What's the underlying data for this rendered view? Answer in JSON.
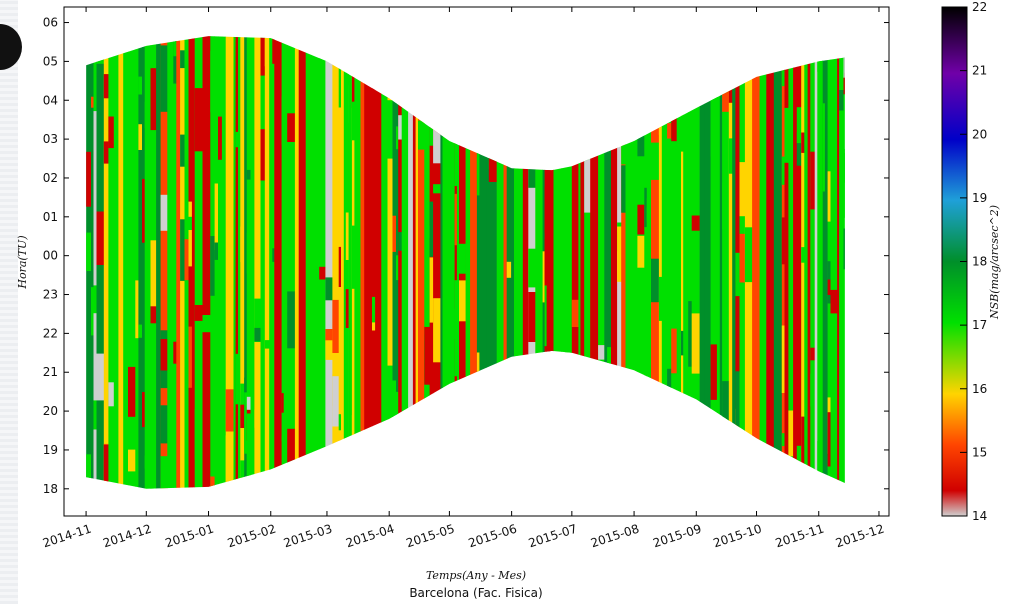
{
  "chart_data": {
    "type": "heatmap",
    "title": "",
    "subtitle": "Barcelona (Fac. Fisica)",
    "xlabel": "Temps(Any - Mes)",
    "ylabel": "Hora(TU)",
    "x_ticks": [
      "2014-11",
      "2014-12",
      "2015-01",
      "2015-02",
      "2015-03",
      "2015-04",
      "2015-05",
      "2015-06",
      "2015-07",
      "2015-08",
      "2015-09",
      "2015-10",
      "2015-11",
      "2015-12"
    ],
    "y_ticks": [
      "06",
      "05",
      "04",
      "03",
      "02",
      "01",
      "00",
      "23",
      "22",
      "21",
      "20",
      "19",
      "18"
    ],
    "x_range": [
      "2014-10-21",
      "2015-12-06"
    ],
    "y_range_hours_UT": [
      17.3,
      30.4
    ],
    "night_envelope": {
      "x": [
        "2014-11-01",
        "2014-12-01",
        "2015-01-01",
        "2015-02-01",
        "2015-03-01",
        "2015-04-01",
        "2015-05-01",
        "2015-06-01",
        "2015-06-21",
        "2015-07-01",
        "2015-08-01",
        "2015-09-01",
        "2015-10-01",
        "2015-11-01",
        "2015-11-14"
      ],
      "start_hour_UT": [
        18.3,
        18.0,
        18.05,
        18.5,
        19.1,
        19.8,
        20.7,
        21.4,
        21.55,
        21.5,
        21.05,
        20.3,
        19.3,
        18.45,
        18.15
      ],
      "end_hour_UT": [
        28.9,
        29.4,
        29.65,
        29.6,
        29.0,
        28.05,
        26.95,
        26.25,
        26.2,
        26.3,
        26.95,
        27.8,
        28.6,
        29.0,
        29.1
      ]
    },
    "colorbar": {
      "label": "NSB(mag/arcsec^2)",
      "min": 14,
      "max": 22,
      "ticks": [
        "22",
        "21",
        "20",
        "19",
        "18",
        "17",
        "16",
        "15",
        "14"
      ],
      "colors": [
        "#cfcfcf",
        "#d00000",
        "#ff4500",
        "#ffd400",
        "#00e000",
        "#008f2a",
        "#1fa0d8",
        "#0000c8",
        "#7000a8",
        "#000000"
      ]
    },
    "grid": false,
    "legend": "none"
  }
}
